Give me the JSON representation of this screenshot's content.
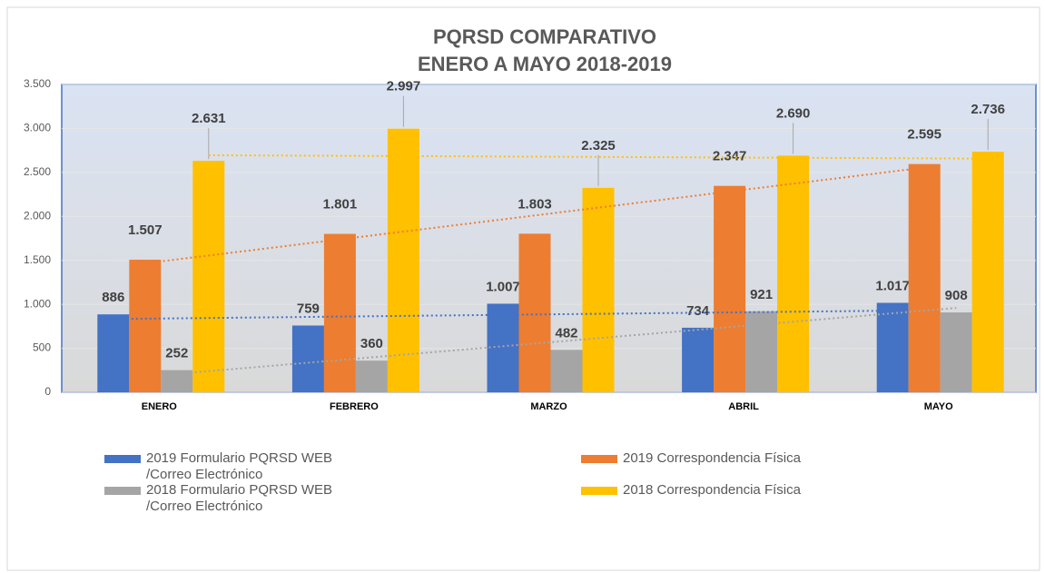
{
  "chart_data": {
    "type": "bar",
    "title": "PQRSD COMPARATIVO",
    "subtitle": "ENERO A MAYO 2018-2019",
    "categories": [
      "ENERO",
      "FEBRERO",
      "MARZO",
      "ABRIL",
      "MAYO"
    ],
    "series": [
      {
        "name": "2019 Formulario PQRSD WEB /Correo Electrónico",
        "color": "#4472c4",
        "values": [
          886,
          759,
          1007,
          734,
          1017
        ],
        "value_labels": [
          "886",
          "759",
          "1.007",
          "734",
          "1.017"
        ]
      },
      {
        "name": "2019 Correspondencia Física",
        "color": "#ed7d31",
        "values": [
          1507,
          1801,
          1803,
          2347,
          2595
        ],
        "value_labels": [
          "1.507",
          "1.801",
          "1.803",
          "2.347",
          "2.595"
        ]
      },
      {
        "name": "2018 Formulario PQRSD WEB /Correo Electrónico",
        "color": "#a5a5a5",
        "values": [
          252,
          360,
          482,
          921,
          908
        ],
        "value_labels": [
          "252",
          "360",
          "482",
          "921",
          "908"
        ]
      },
      {
        "name": "2018 Correspondencia Física",
        "color": "#ffc000",
        "values": [
          2631,
          2997,
          2325,
          2690,
          2736
        ],
        "value_labels": [
          "2.631",
          "2.997",
          "2.325",
          "2.690",
          "2.736"
        ]
      }
    ],
    "ylim": [
      0,
      3500
    ],
    "yticks": [
      0,
      500,
      {
        "value": 1000,
        "label": "1.000"
      },
      {
        "value": 1500,
        "label": "1.500"
      },
      {
        "value": 2000,
        "label": "2.000"
      },
      {
        "value": 2500,
        "label": "2.500"
      },
      {
        "value": 3000,
        "label": "3.000"
      },
      {
        "value": 3500,
        "label": "3.500"
      }
    ],
    "grid": true,
    "trendlines": true,
    "legend": "bottom"
  }
}
